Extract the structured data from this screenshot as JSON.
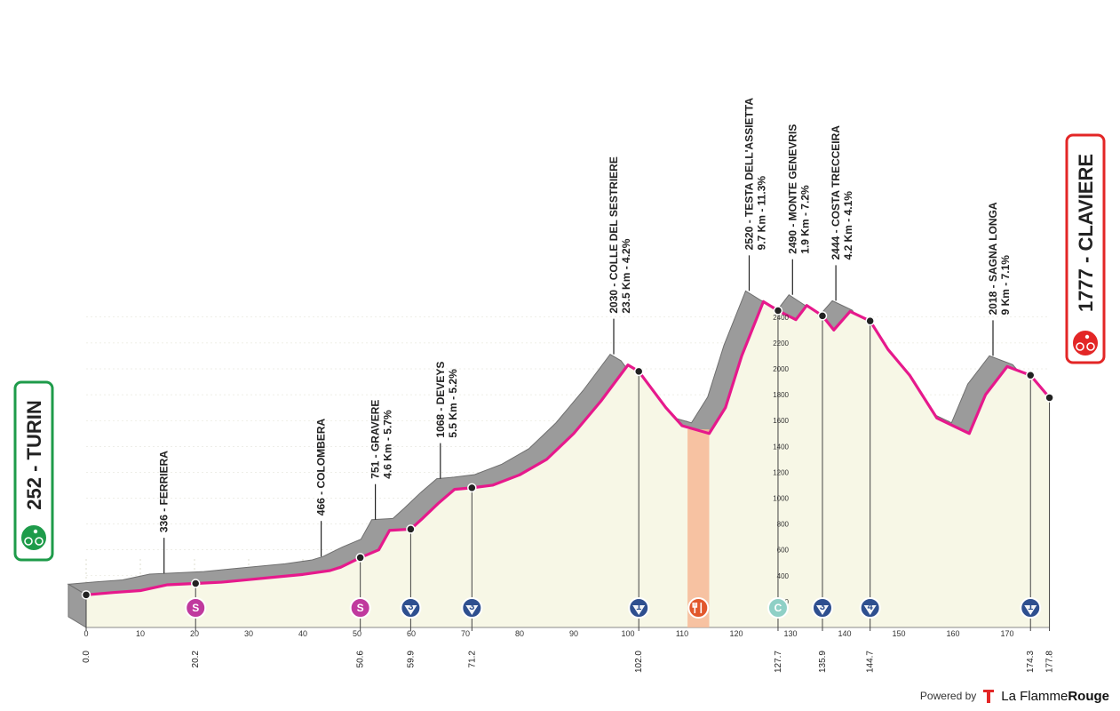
{
  "chart_data": {
    "type": "area",
    "title": "",
    "xlabel": "",
    "ylabel": "",
    "xlim": [
      0,
      177.8
    ],
    "ylim": [
      0,
      2600
    ],
    "x_ticks": [
      "0",
      "10",
      "20",
      "30",
      "40",
      "50",
      "60",
      "70",
      "80",
      "90",
      "100",
      "110",
      "120",
      "130",
      "140",
      "150",
      "160",
      "170"
    ],
    "y_ticks": [
      "200",
      "400",
      "600",
      "800",
      "1000",
      "1200",
      "1400",
      "1600",
      "1800",
      "2000",
      "2200",
      "2400"
    ],
    "profile": [
      {
        "km": 0,
        "alt": 252
      },
      {
        "km": 5,
        "alt": 270
      },
      {
        "km": 10,
        "alt": 285
      },
      {
        "km": 15,
        "alt": 330
      },
      {
        "km": 18,
        "alt": 336
      },
      {
        "km": 20.2,
        "alt": 340
      },
      {
        "km": 25,
        "alt": 350
      },
      {
        "km": 30,
        "alt": 370
      },
      {
        "km": 35,
        "alt": 390
      },
      {
        "km": 40,
        "alt": 410
      },
      {
        "km": 45,
        "alt": 440
      },
      {
        "km": 47,
        "alt": 466
      },
      {
        "km": 50.6,
        "alt": 540
      },
      {
        "km": 54,
        "alt": 600
      },
      {
        "km": 56,
        "alt": 751
      },
      {
        "km": 59.9,
        "alt": 760
      },
      {
        "km": 62,
        "alt": 840
      },
      {
        "km": 65,
        "alt": 960
      },
      {
        "km": 68,
        "alt": 1068
      },
      {
        "km": 71.2,
        "alt": 1080
      },
      {
        "km": 75,
        "alt": 1100
      },
      {
        "km": 80,
        "alt": 1180
      },
      {
        "km": 85,
        "alt": 1300
      },
      {
        "km": 90,
        "alt": 1500
      },
      {
        "km": 95,
        "alt": 1750
      },
      {
        "km": 100,
        "alt": 2030
      },
      {
        "km": 102,
        "alt": 1980
      },
      {
        "km": 107,
        "alt": 1700
      },
      {
        "km": 110,
        "alt": 1560
      },
      {
        "km": 115,
        "alt": 1500
      },
      {
        "km": 118,
        "alt": 1700
      },
      {
        "km": 121,
        "alt": 2100
      },
      {
        "km": 125,
        "alt": 2520
      },
      {
        "km": 127.7,
        "alt": 2450
      },
      {
        "km": 131,
        "alt": 2380
      },
      {
        "km": 133,
        "alt": 2490
      },
      {
        "km": 135.9,
        "alt": 2410
      },
      {
        "km": 138,
        "alt": 2300
      },
      {
        "km": 141,
        "alt": 2444
      },
      {
        "km": 144.7,
        "alt": 2370
      },
      {
        "km": 148,
        "alt": 2150
      },
      {
        "km": 152,
        "alt": 1950
      },
      {
        "km": 157,
        "alt": 1620
      },
      {
        "km": 163,
        "alt": 1500
      },
      {
        "km": 166,
        "alt": 1800
      },
      {
        "km": 170,
        "alt": 2018
      },
      {
        "km": 174.3,
        "alt": 1950
      },
      {
        "km": 177.8,
        "alt": 1777
      }
    ],
    "markers": [
      {
        "km": "0.0",
        "kmv": 0,
        "badge": "",
        "alt": 252
      },
      {
        "km": "20.2",
        "kmv": 20.2,
        "badge": "S",
        "color": "#c0399e",
        "alt": 340
      },
      {
        "km": "50.6",
        "kmv": 50.6,
        "badge": "S",
        "color": "#c0399e",
        "alt": 540
      },
      {
        "km": "59.9",
        "kmv": 59.9,
        "badge": "3",
        "color": "#2e4f8f",
        "alt": 760
      },
      {
        "km": "71.2",
        "kmv": 71.2,
        "badge": "3",
        "color": "#2e4f8f",
        "alt": 1080
      },
      {
        "km": "102.0",
        "kmv": 102,
        "badge": "1",
        "color": "#2e4f8f",
        "alt": 1980
      },
      {
        "km": "",
        "kmv": 113,
        "badge": "feed",
        "color": "#e2572c",
        "alt": 0
      },
      {
        "km": "127.7",
        "kmv": 127.7,
        "badge": "C",
        "color": "#8fd0c6",
        "alt": 2450
      },
      {
        "km": "135.9",
        "kmv": 135.9,
        "badge": "3",
        "color": "#2e4f8f",
        "alt": 2410
      },
      {
        "km": "144.7",
        "kmv": 144.7,
        "badge": "4",
        "color": "#2e4f8f",
        "alt": 2370
      },
      {
        "km": "174.3",
        "kmv": 174.3,
        "badge": "1",
        "color": "#2e4f8f",
        "alt": 1950
      },
      {
        "km": "177.8",
        "kmv": 177.8,
        "badge": "",
        "alt": 1777
      }
    ],
    "feed_zone": [
      111,
      115
    ],
    "climbs": [
      {
        "name": "336 - FERRIERA",
        "stats": "",
        "km": 17,
        "alt": 336
      },
      {
        "name": "466 - COLOMBERA",
        "stats": "",
        "km": 46,
        "alt": 466
      },
      {
        "name": "751 - GRAVERE",
        "stats": "4.6 Km - 5.7%",
        "km": 56,
        "alt": 751
      },
      {
        "name": "1068 - DEVEYS",
        "stats": "5.5 Km - 5.2%",
        "km": 68,
        "alt": 1068
      },
      {
        "name": "2030 - COLLE DEL SESTRIERE",
        "stats": "23.5 Km - 4.2%",
        "km": 100,
        "alt": 2030
      },
      {
        "name": "2520 - TESTA DELL'ASSIETTA",
        "stats": "9.7 Km - 11.3%",
        "km": 125,
        "alt": 2520
      },
      {
        "name": "2490 - MONTE GENEVRIS",
        "stats": "1.9 Km - 7.2%",
        "km": 133,
        "alt": 2490
      },
      {
        "name": "2444 - COSTA TRECCEIRA",
        "stats": "4.2 Km - 4.1%",
        "km": 141,
        "alt": 2444
      },
      {
        "name": "2018 - SAGNA LONGA",
        "stats": "9 Km - 7.1%",
        "km": 170,
        "alt": 2018
      }
    ],
    "start": {
      "label": "252 - TURIN"
    },
    "finish": {
      "label": "1777 - CLAVIERE"
    },
    "colors": {
      "profile_fill": "#f7f7e6",
      "profile_side": "#9b9b9b",
      "route_line": "#e6198c",
      "start": "#1e9b4a",
      "finish": "#e32626",
      "feed_zone": "#f7b995"
    }
  },
  "brand": {
    "powered_by": "Powered by",
    "name_light": "La Flamme",
    "name_bold": "Rouge"
  }
}
